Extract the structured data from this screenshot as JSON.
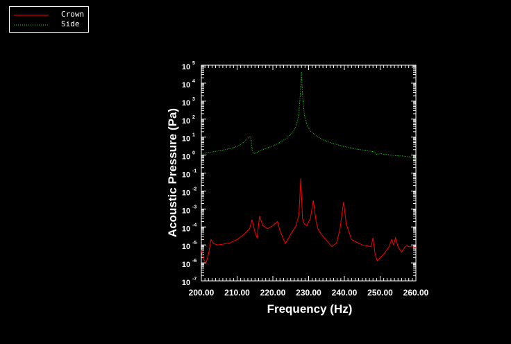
{
  "chart_data": {
    "type": "line",
    "xlabel": "Frequency (Hz)",
    "ylabel": "Acoustic Pressure (Pa)",
    "xlim": [
      200,
      260
    ],
    "ylim": [
      1e-07,
      100000
    ],
    "yscale": "log",
    "x_ticks": [
      "200.00",
      "210.00",
      "220.00",
      "230.00",
      "240.00",
      "250.00",
      "260.00"
    ],
    "y_ticks": [
      {
        "base": "10",
        "exp": "-7",
        "value": 1e-07
      },
      {
        "base": "10",
        "exp": "-6",
        "value": 1e-06
      },
      {
        "base": "10",
        "exp": "-5",
        "value": 1e-05
      },
      {
        "base": "10",
        "exp": "-4",
        "value": 0.0001
      },
      {
        "base": "10",
        "exp": "-3",
        "value": 0.001
      },
      {
        "base": "10",
        "exp": "-2",
        "value": 0.01
      },
      {
        "base": "10",
        "exp": "-1",
        "value": 0.1
      },
      {
        "base": "10",
        "exp": "0",
        "value": 1
      },
      {
        "base": "10",
        "exp": "1",
        "value": 10
      },
      {
        "base": "10",
        "exp": "2",
        "value": 100
      },
      {
        "base": "10",
        "exp": "3",
        "value": 1000
      },
      {
        "base": "10",
        "exp": "4",
        "value": 10000
      },
      {
        "base": "10",
        "exp": "5",
        "value": 100000
      }
    ],
    "grid": false,
    "legend_position": "top-left",
    "series": [
      {
        "name": "Crown",
        "color": "#ff0000",
        "style": "solid",
        "x": [
          200,
          200.7,
          201.3,
          202,
          202.7,
          203.4,
          204.5,
          206,
          208,
          210,
          212,
          213.5,
          214.2,
          215,
          215.6,
          216.3,
          217.2,
          218.5,
          220,
          221.3,
          222,
          223.5,
          225,
          226.5,
          227.3,
          227.8,
          228.3,
          228.8,
          229.5,
          230.5,
          231.3,
          232.1,
          232.6,
          233.5,
          235,
          236.5,
          237.8,
          238.8,
          239.3,
          239.8,
          240.5,
          242,
          245,
          247.5,
          248,
          248.6,
          249.2,
          250,
          251,
          252.5,
          253.2,
          253.8,
          254.3,
          255,
          256,
          257,
          257.5,
          258,
          259,
          260
        ],
        "y": [
          5e-06,
          1.5e-06,
          1e-06,
          3e-06,
          2e-05,
          1.2e-05,
          1e-05,
          1.1e-05,
          1.3e-05,
          2e-05,
          4e-05,
          8e-05,
          0.00025,
          5e-05,
          2.5e-05,
          0.0004,
          0.00012,
          8e-05,
          0.00012,
          0.0002,
          6e-05,
          1.2e-05,
          4e-05,
          0.00012,
          0.0005,
          0.05,
          0.0003,
          0.00015,
          0.00012,
          0.0003,
          0.003,
          0.0002,
          8e-05,
          4e-05,
          1.8e-05,
          8e-06,
          1.3e-05,
          8e-05,
          0.0005,
          0.0025,
          0.00015,
          2e-05,
          1e-05,
          8e-06,
          2.5e-05,
          3e-06,
          1.3e-06,
          2e-06,
          3e-06,
          8e-06,
          2e-05,
          1e-05,
          2.5e-05,
          8e-06,
          4e-06,
          8e-06,
          9e-06,
          8e-06,
          8e-06,
          7e-06
        ]
      },
      {
        "name": "Side",
        "color": "#22dd22",
        "style": "dotted",
        "x": [
          200,
          202,
          204,
          206,
          208,
          210,
          211.5,
          212.8,
          213.8,
          214.3,
          214.9,
          215.3,
          216,
          217,
          218.5,
          220,
          222,
          224,
          225.5,
          226.5,
          227.2,
          227.7,
          228,
          228.3,
          228.8,
          229.5,
          230.5,
          232,
          234,
          236,
          238,
          240,
          243,
          246,
          248.5,
          249,
          250,
          252,
          254,
          256,
          258,
          260
        ],
        "y": [
          1.2,
          1.4,
          1.6,
          1.9,
          2.3,
          3,
          4.5,
          8,
          11,
          1.5,
          1.2,
          1.3,
          1.6,
          2,
          2.5,
          3.2,
          5,
          9,
          18,
          40,
          150,
          3000,
          40000,
          2500,
          180,
          50,
          22,
          12,
          7,
          5,
          3.8,
          3,
          2.2,
          1.8,
          1.5,
          1.1,
          1.2,
          1.05,
          0.95,
          0.9,
          0.8,
          0.65
        ]
      }
    ]
  }
}
